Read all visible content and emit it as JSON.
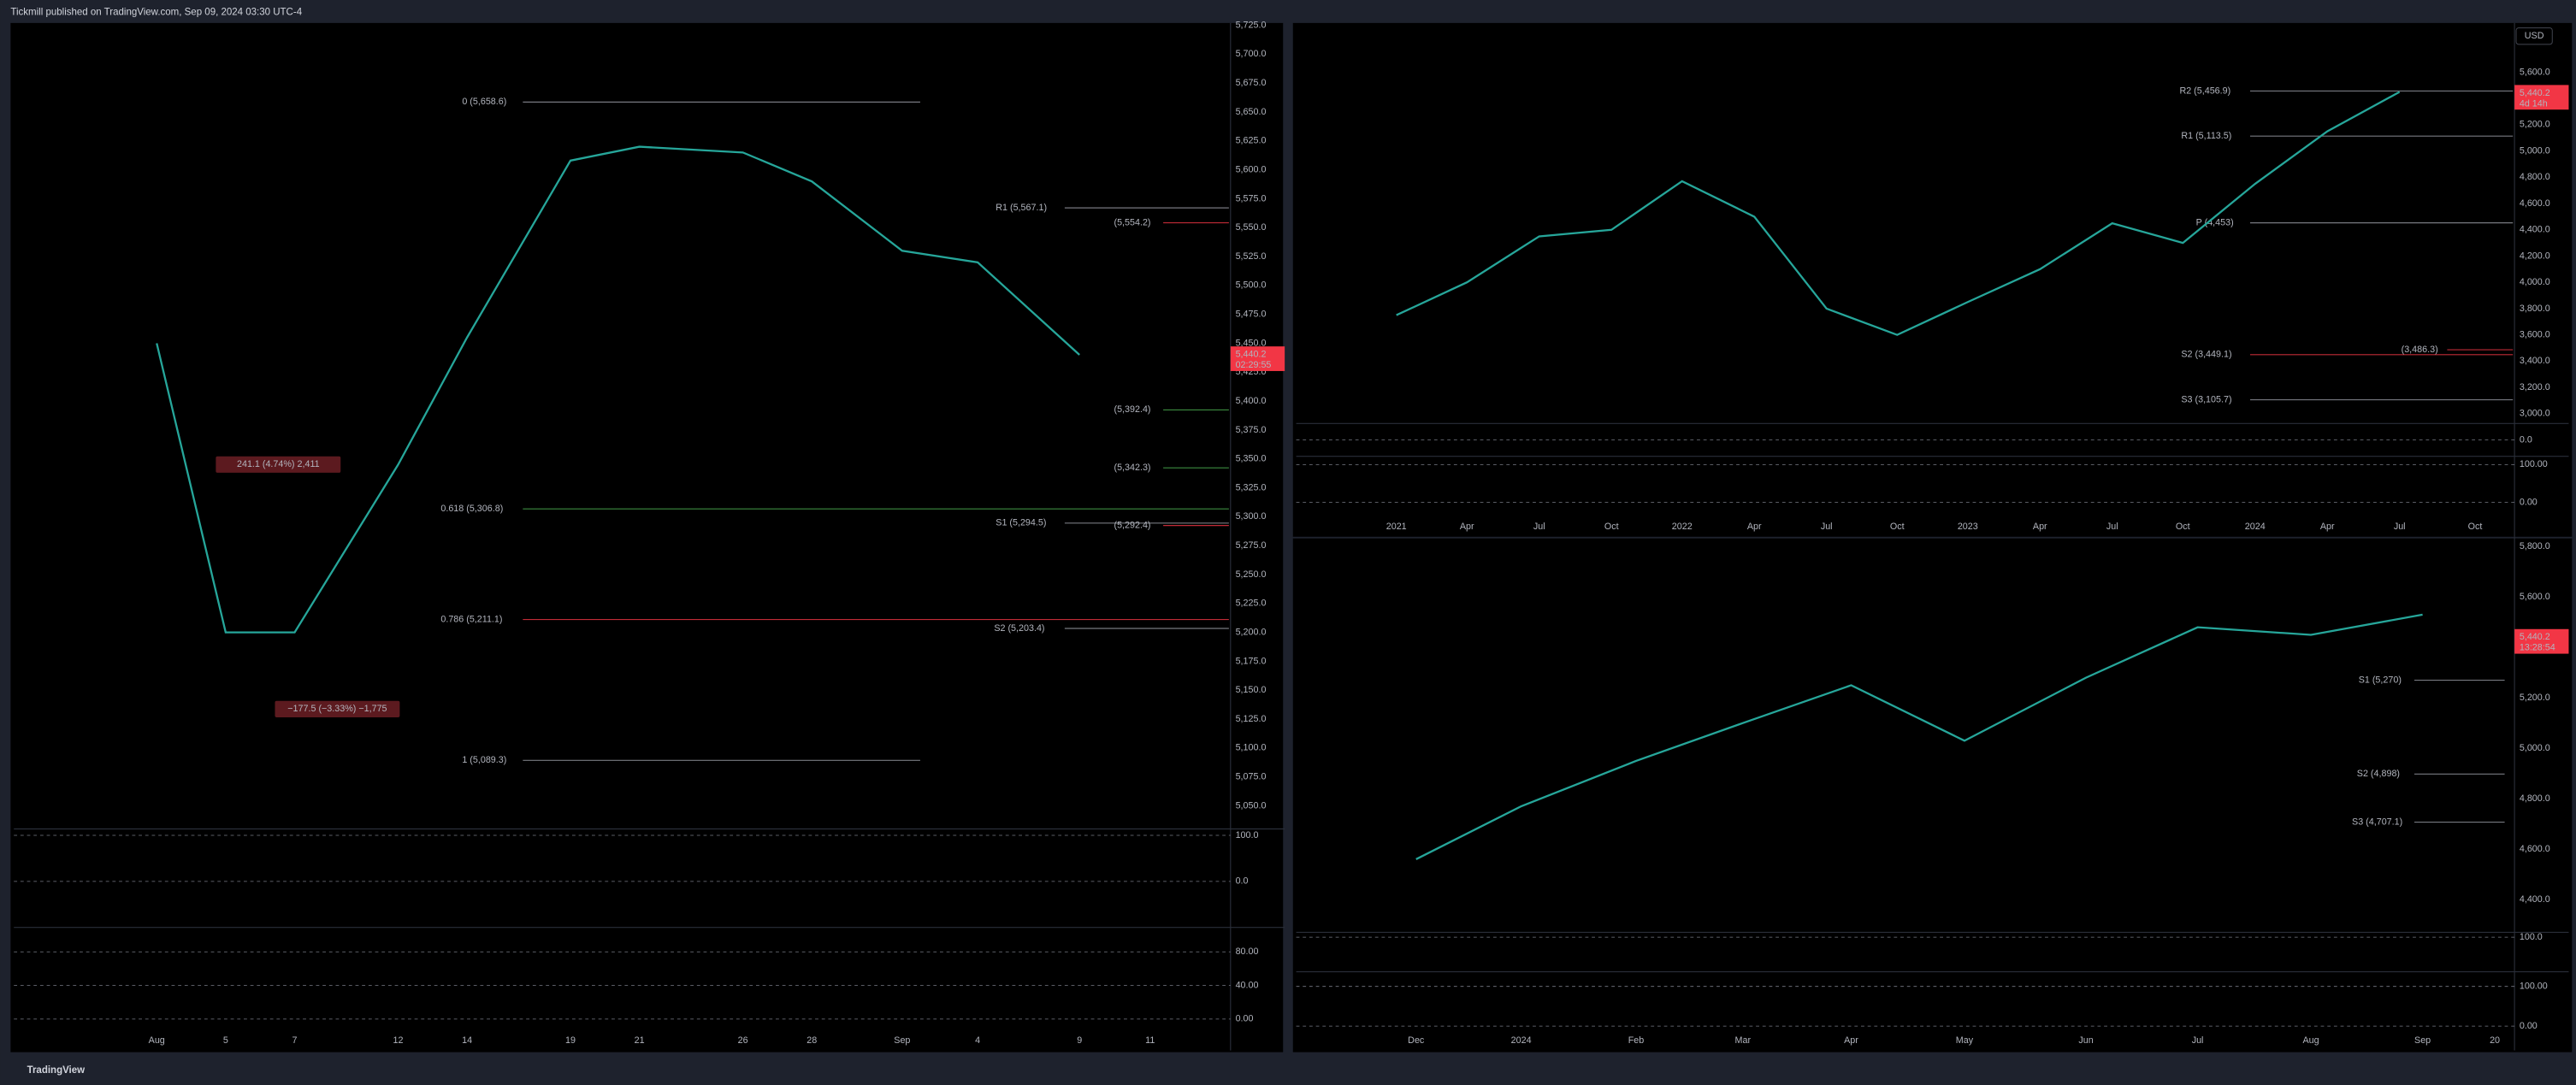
{
  "header": {
    "title": "Tickmill published on TradingView.com, Sep 09, 2024 03:30 UTC-4"
  },
  "footer": {
    "brand": "TradingView"
  },
  "chart_data": [
    {
      "type": "line",
      "color": "#26a69a",
      "categories": [
        "Aug",
        "5",
        "7",
        "12",
        "14",
        "19",
        "21",
        "26",
        "28",
        "Sep",
        "4",
        "9",
        "11"
      ],
      "values": [
        5450,
        5200,
        5200,
        5345,
        5455,
        5608,
        5620,
        5615,
        5590,
        5530,
        5520,
        5440,
        null
      ],
      "ylim": [
        5030,
        5727
      ],
      "yticks": [
        {
          "value": 5725,
          "label": "5,725.0"
        },
        {
          "value": 5700,
          "label": "5,700.0"
        },
        {
          "value": 5675,
          "label": "5,675.0"
        },
        {
          "value": 5650,
          "label": "5,650.0"
        },
        {
          "value": 5625,
          "label": "5,625.0"
        },
        {
          "value": 5600,
          "label": "5,600.0"
        },
        {
          "value": 5575,
          "label": "5,575.0"
        },
        {
          "value": 5550,
          "label": "5,550.0"
        },
        {
          "value": 5525,
          "label": "5,525.0"
        },
        {
          "value": 5500,
          "label": "5,500.0"
        },
        {
          "value": 5475,
          "label": "5,475.0"
        },
        {
          "value": 5450,
          "label": "5,450.0"
        },
        {
          "value": 5425,
          "label": "5,425.0"
        },
        {
          "value": 5400,
          "label": "5,400.0"
        },
        {
          "value": 5375,
          "label": "5,375.0"
        },
        {
          "value": 5350,
          "label": "5,350.0"
        },
        {
          "value": 5325,
          "label": "5,325.0"
        },
        {
          "value": 5300,
          "label": "5,300.0"
        },
        {
          "value": 5275,
          "label": "5,275.0"
        },
        {
          "value": 5250,
          "label": "5,250.0"
        },
        {
          "value": 5225,
          "label": "5,225.0"
        },
        {
          "value": 5200,
          "label": "5,200.0"
        },
        {
          "value": 5175,
          "label": "5,175.0"
        },
        {
          "value": 5150,
          "label": "5,150.0"
        },
        {
          "value": 5125,
          "label": "5,125.0"
        },
        {
          "value": 5100,
          "label": "5,100.0"
        },
        {
          "value": 5075,
          "label": "5,075.0"
        },
        {
          "value": 5050,
          "label": "5,050.0"
        }
      ],
      "levels": [
        {
          "label": "0 (5,658.6)",
          "value": 5658.6,
          "color": "#9598a1"
        },
        {
          "label": "0.618 (5,306.8)",
          "value": 5306.8,
          "color": "#4caf50"
        },
        {
          "label": "0.786 (5,211.1)",
          "value": 5211.1,
          "color": "#f23645"
        },
        {
          "label": "1 (5,089.3)",
          "value": 5089.3,
          "color": "#9598a1"
        },
        {
          "label": "R1 (5,567.1)",
          "value": 5567.1,
          "color": "#9598a1"
        },
        {
          "label": "(5,554.2)",
          "value": 5554.2,
          "color": "#f23645"
        },
        {
          "label": "S1 (5,294.5)",
          "value": 5294.5,
          "color": "#9598a1"
        },
        {
          "label": "(5,292.4)",
          "value": 5292.4,
          "color": "#f23645"
        },
        {
          "label": "S2 (5,203.4)",
          "value": 5203.4,
          "color": "#9598a1"
        },
        {
          "label": "(5,392.4)",
          "value": 5392.4,
          "color": "#4caf50"
        },
        {
          "label": "(5,342.3)",
          "value": 5342.3,
          "color": "#4caf50"
        }
      ],
      "annotations": [
        "241.1 (4.74%) 2,411",
        "−177.5 (−3.33%) −1,775"
      ],
      "price_label": {
        "value": 5440.2,
        "label": "5,440.2"
      },
      "countdown": "02:29:55",
      "oscillators": [
        {
          "ylim": [
            -100,
            114
          ],
          "yticks": [
            {
              "value": 100,
              "label": "100.0"
            },
            {
              "value": 0,
              "label": "0.0"
            }
          ]
        },
        {
          "ylim": [
            -14,
            109
          ],
          "yticks": [
            {
              "value": 80,
              "label": "80.00"
            },
            {
              "value": 40,
              "label": "40.00"
            },
            {
              "value": 0,
              "label": "0.00"
            }
          ]
        }
      ]
    },
    {
      "type": "line",
      "color": "#26a69a",
      "currency": "USD",
      "categories": [
        "2021",
        "Apr",
        "Jul",
        "Oct",
        "2022",
        "Apr",
        "Jul",
        "Oct",
        "2023",
        "Apr",
        "Jul",
        "Oct",
        "2024",
        "Apr",
        "Jul",
        "Oct"
      ],
      "values": [
        3750,
        4000,
        4350,
        4400,
        4770,
        4500,
        3800,
        3600,
        3850,
        4100,
        4450,
        4300,
        4750,
        5150,
        5450,
        null
      ],
      "ylim": [
        2925,
        5975
      ],
      "yticks": [
        {
          "value": 5600,
          "label": "5,600.0"
        },
        {
          "value": 5400,
          "label": "5,400.0"
        },
        {
          "value": 5200,
          "label": "5,200.0"
        },
        {
          "value": 5000,
          "label": "5,000.0"
        },
        {
          "value": 4800,
          "label": "4,800.0"
        },
        {
          "value": 4600,
          "label": "4,600.0"
        },
        {
          "value": 4400,
          "label": "4,400.0"
        },
        {
          "value": 4200,
          "label": "4,200.0"
        },
        {
          "value": 4000,
          "label": "4,000.0"
        },
        {
          "value": 3800,
          "label": "3,800.0"
        },
        {
          "value": 3600,
          "label": "3,600.0"
        },
        {
          "value": 3400,
          "label": "3,400.0"
        },
        {
          "value": 3200,
          "label": "3,200.0"
        },
        {
          "value": 3000,
          "label": "3,000.0"
        }
      ],
      "levels": [
        {
          "label": "R2 (5,456.9)",
          "value": 5456.9,
          "color": "#9598a1"
        },
        {
          "label": "R1 (5,113.5)",
          "value": 5113.5,
          "color": "#9598a1"
        },
        {
          "label": "P (4,453)",
          "value": 4453,
          "color": "#9598a1"
        },
        {
          "label": "S2 (3,449.1)",
          "value": 3449.1,
          "color": "#f23645"
        },
        {
          "label": "(3,486.3)",
          "value": 3486.3,
          "color": "#f23645"
        },
        {
          "label": "S3 (3,105.7)",
          "value": 3105.7,
          "color": "#9598a1"
        }
      ],
      "price_label": {
        "value": 5440.2,
        "label": "5,440.2"
      },
      "countdown": "4d 14h",
      "oscillators": [
        {
          "ylim": [
            -100,
            100
          ],
          "yticks": [
            {
              "value": 0,
              "label": "0.0"
            }
          ]
        },
        {
          "ylim": [
            -35,
            122
          ],
          "yticks": [
            {
              "value": 100,
              "label": "100.00"
            },
            {
              "value": 0,
              "label": "0.00"
            }
          ]
        }
      ]
    },
    {
      "type": "line",
      "color": "#26a69a",
      "categories": [
        "Dec",
        "2024",
        "Feb",
        "Mar",
        "Apr",
        "May",
        "Jun",
        "Jul",
        "Aug",
        "Sep",
        "20"
      ],
      "values": [
        4560,
        4770,
        4950,
        5100,
        5250,
        5030,
        5280,
        5480,
        5450,
        5530,
        null
      ],
      "ylim": [
        4270,
        5839
      ],
      "yticks": [
        {
          "value": 5800,
          "label": "5,800.0"
        },
        {
          "value": 5600,
          "label": "5,600.0"
        },
        {
          "value": 5400,
          "label": "5,400.0"
        },
        {
          "value": 5200,
          "label": "5,200.0"
        },
        {
          "value": 5000,
          "label": "5,000.0"
        },
        {
          "value": 4800,
          "label": "4,800.0"
        },
        {
          "value": 4600,
          "label": "4,600.0"
        },
        {
          "value": 4400,
          "label": "4,400.0"
        }
      ],
      "levels": [
        {
          "label": "S1 (5,270)",
          "value": 5270,
          "color": "#9598a1"
        },
        {
          "label": "S2 (4,898)",
          "value": 4898,
          "color": "#9598a1"
        },
        {
          "label": "S3 (4,707.1)",
          "value": 4707.1,
          "color": "#9598a1"
        }
      ],
      "price_label": {
        "value": 5440.2,
        "label": "5,440.2"
      },
      "countdown": "13:28:54",
      "oscillators": [
        {
          "ylim": [
            -50,
            121
          ],
          "yticks": [
            {
              "value": 100,
              "label": "100.0"
            }
          ]
        },
        {
          "ylim": [
            -12,
            137
          ],
          "yticks": [
            {
              "value": 100,
              "label": "100.00"
            },
            {
              "value": 0,
              "label": "0.00"
            }
          ]
        }
      ]
    }
  ]
}
